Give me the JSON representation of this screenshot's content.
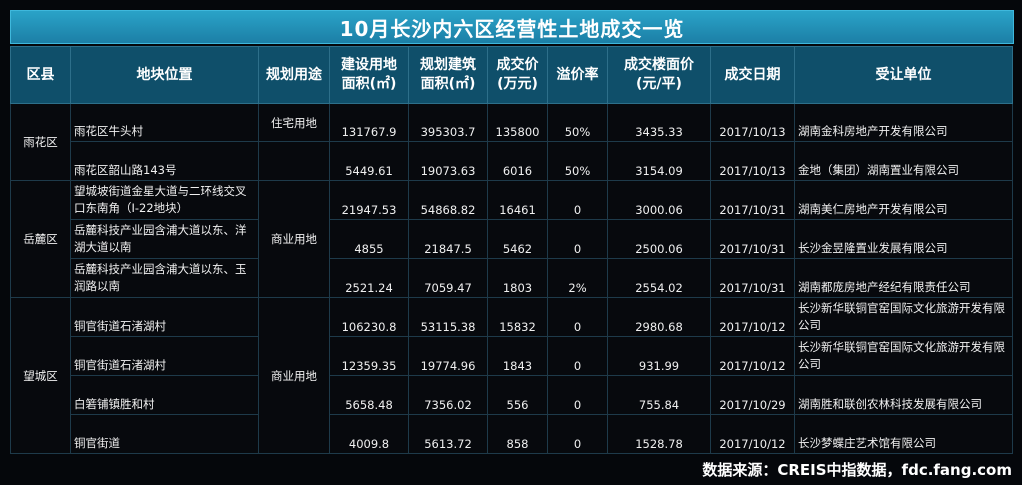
{
  "title": "10月长沙内六区经营性土地成交一览",
  "headers": {
    "district": "区县",
    "location": "地块位置",
    "usage": "规划用途",
    "site_area_1": "建设用地",
    "site_area_2": "面积(㎡)",
    "build_area_1": "规划建筑",
    "build_area_2": "面积(㎡)",
    "price_1": "成交价",
    "price_2": "(万元)",
    "premium": "溢价率",
    "floor_price_1": "成交楼面价",
    "floor_price_2": "(元/平)",
    "date": "成交日期",
    "buyer": "受让单位"
  },
  "groups": {
    "yuhua": "雨花区",
    "yuelu": "岳麓区",
    "wangcheng": "望城区",
    "usage_residential": "住宅用地",
    "usage_commercial_1": "商业用地",
    "usage_commercial_2": "商业用地"
  },
  "rows": [
    {
      "location": "雨花区牛头村",
      "site_area": "131767.9",
      "build_area": "395303.7",
      "price": "135800",
      "premium": "50%",
      "floor_price": "3435.33",
      "date": "2017/10/13",
      "buyer": "湖南金科房地产开发有限公司"
    },
    {
      "location": "雨花区韶山路143号",
      "site_area": "5449.61",
      "build_area": "19073.63",
      "price": "6016",
      "premium": "50%",
      "floor_price": "3154.09",
      "date": "2017/10/13",
      "buyer": "金地（集团）湖南置业有限公司"
    },
    {
      "location": "望城坡街道金星大道与二环线交叉口东南角（I-22地块）",
      "site_area": "21947.53",
      "build_area": "54868.82",
      "price": "16461",
      "premium": "0",
      "floor_price": "3000.06",
      "date": "2017/10/31",
      "buyer": "湖南美仁房地产开发有限公司"
    },
    {
      "location": "岳麓科技产业园含浦大道以东、洋湖大道以南",
      "site_area": "4855",
      "build_area": "21847.5",
      "price": "5462",
      "premium": "0",
      "floor_price": "2500.06",
      "date": "2017/10/31",
      "buyer": "长沙金昱隆置业发展有限公司"
    },
    {
      "location": "岳麓科技产业园含浦大道以东、玉润路以南",
      "site_area": "2521.24",
      "build_area": "7059.47",
      "price": "1803",
      "premium": "2%",
      "floor_price": "2554.02",
      "date": "2017/10/31",
      "buyer": "湖南都庞房地产经纪有限责任公司"
    },
    {
      "location": "铜官街道石渚湖村",
      "site_area": "106230.8",
      "build_area": "53115.38",
      "price": "15832",
      "premium": "0",
      "floor_price": "2980.68",
      "date": "2017/10/12",
      "buyer": "长沙新华联铜官窑国际文化旅游开发有限公司"
    },
    {
      "location": "铜官街道石渚湖村",
      "site_area": "12359.35",
      "build_area": "19774.96",
      "price": "1843",
      "premium": "0",
      "floor_price": "931.99",
      "date": "2017/10/12",
      "buyer": "长沙新华联铜官窑国际文化旅游开发有限公司"
    },
    {
      "location": "白箬铺镇胜和村",
      "site_area": "5658.48",
      "build_area": "7356.02",
      "price": "556",
      "premium": "0",
      "floor_price": "755.84",
      "date": "2017/10/29",
      "buyer": "湖南胜和联创农林科技发展有限公司"
    },
    {
      "location": "铜官街道",
      "site_area": "4009.8",
      "build_area": "5613.72",
      "price": "858",
      "premium": "0",
      "floor_price": "1528.78",
      "date": "2017/10/12",
      "buyer": "长沙梦蝶庄艺术馆有限公司"
    }
  ],
  "footer": "数据来源：CREIS中指数据，fdc.fang.com"
}
